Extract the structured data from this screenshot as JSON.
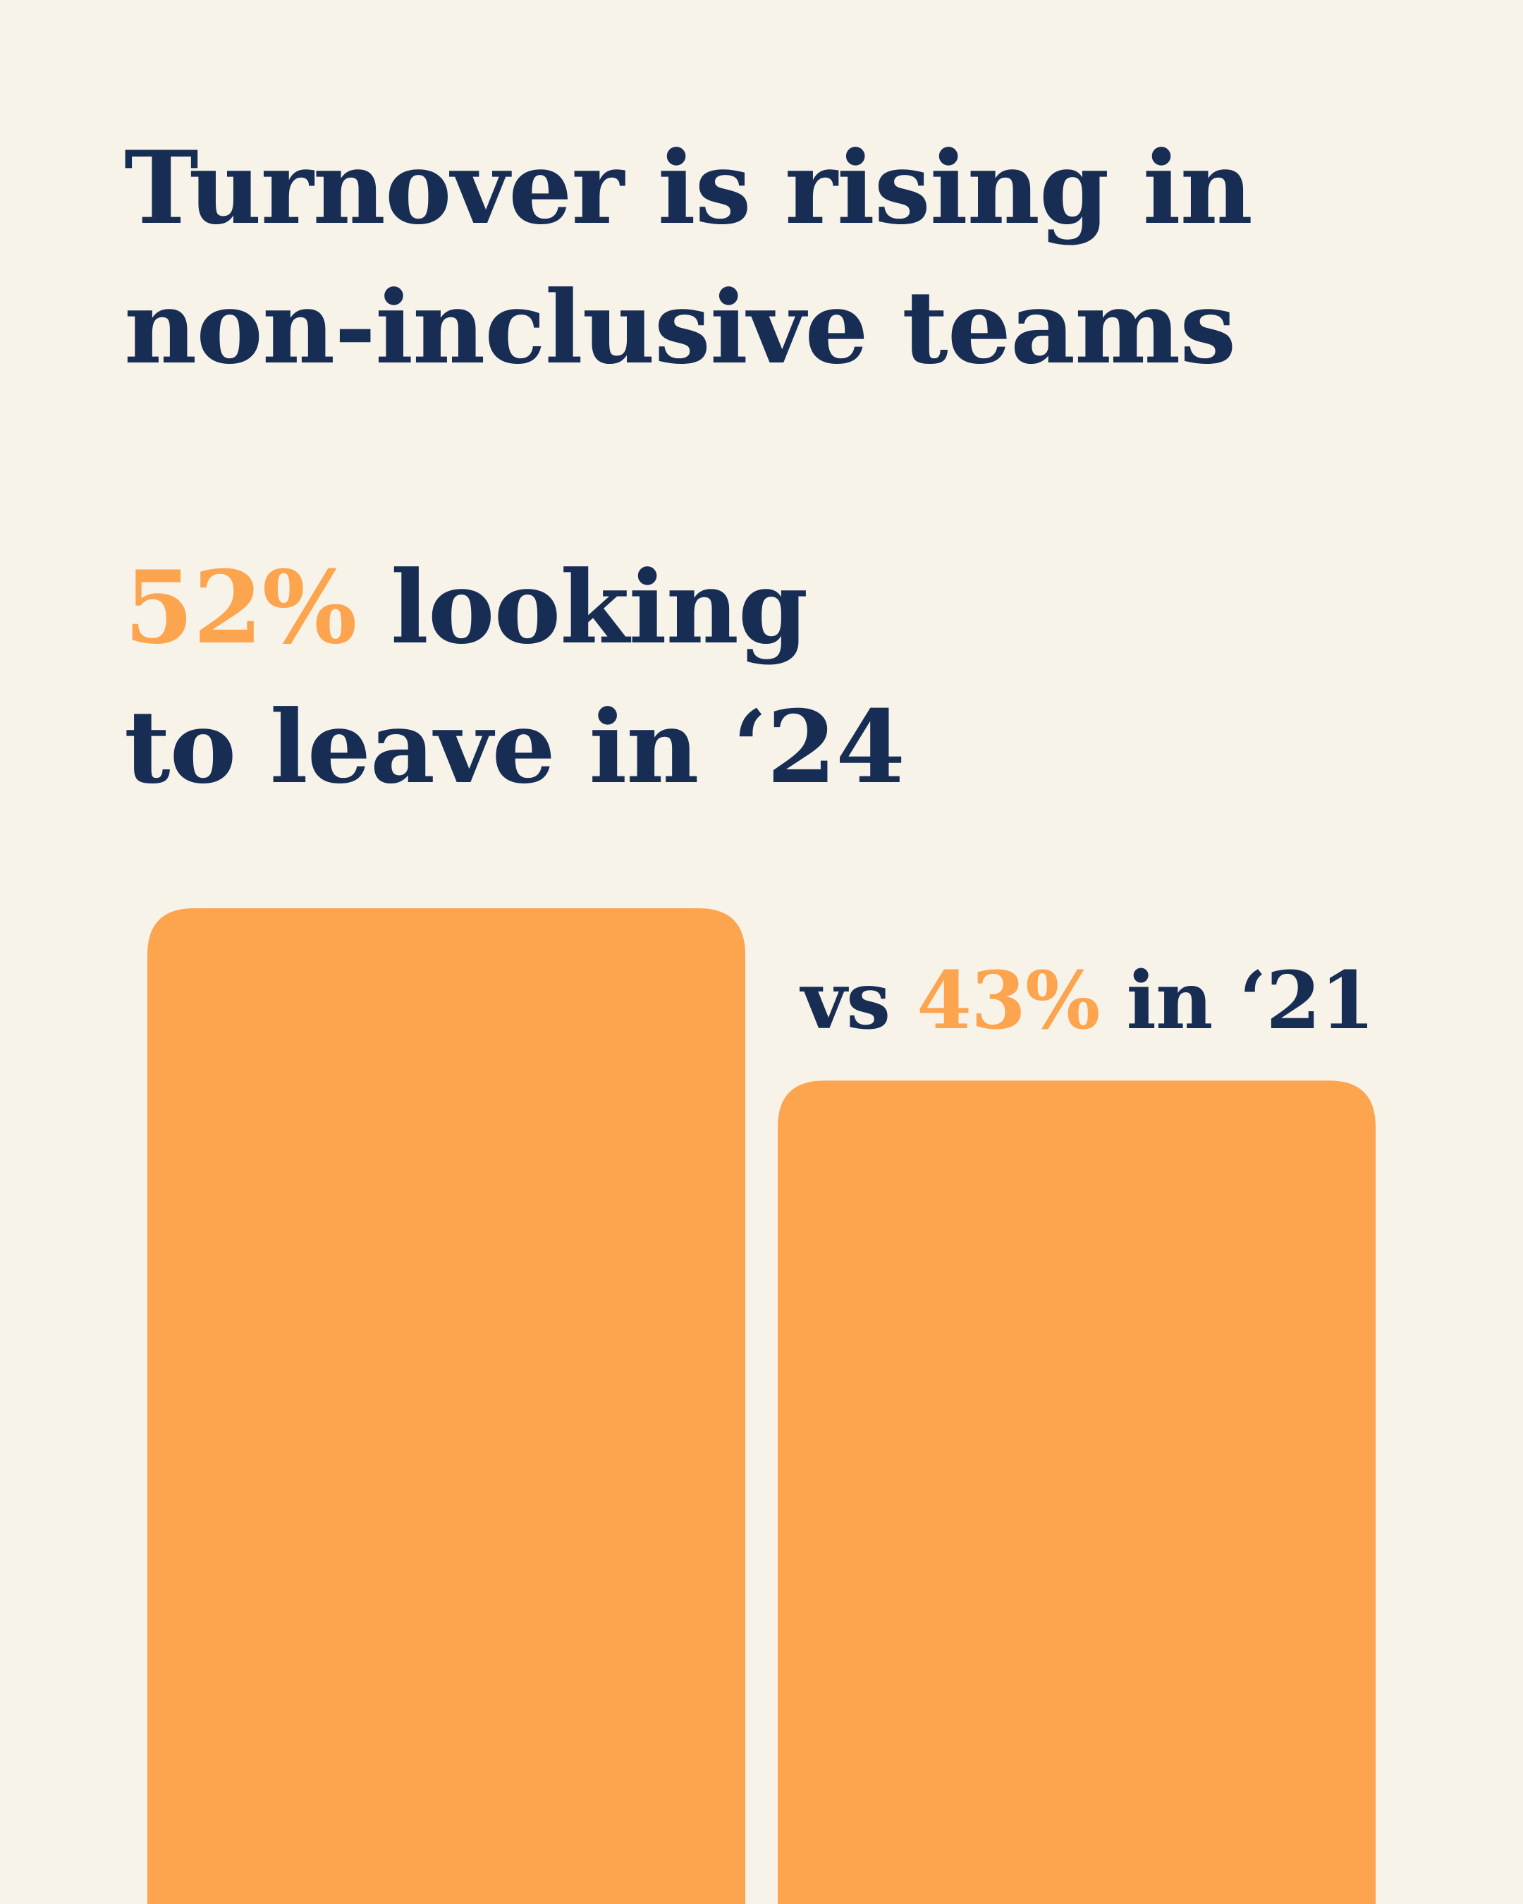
{
  "colors": {
    "background": "#f7f3e9",
    "text": "#172d54",
    "accent": "#fda44f",
    "bar": "#fda44f"
  },
  "title": {
    "line1": "Turnover is rising in",
    "line2": "non-inclusive teams"
  },
  "headline_stat": {
    "value": "52%",
    "text_line1": " looking",
    "text_line2": "to leave in ‘24"
  },
  "comparison": {
    "prefix": "vs ",
    "value": "43%",
    "suffix": " in ‘21"
  },
  "chart_data": {
    "type": "bar",
    "categories": [
      "‘24",
      "‘21"
    ],
    "values": [
      52,
      43
    ],
    "unit": "%",
    "title": "",
    "xlabel": "",
    "ylabel": "",
    "grid": false,
    "legend": "none"
  }
}
